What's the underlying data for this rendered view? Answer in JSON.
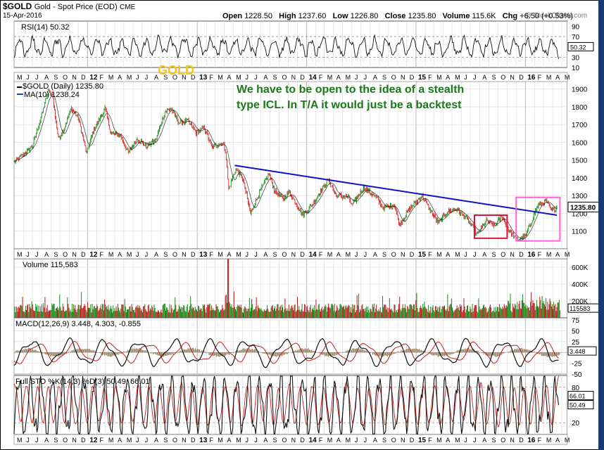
{
  "header": {
    "symbol": "$GOLD",
    "description": "Gold - Spot Price (EOD)",
    "exchange": "CME",
    "date": "15-Apr-2016",
    "watermark": "@ StockCharts.com",
    "ohlc": [
      {
        "label": "Open",
        "value": "1228.50"
      },
      {
        "label": "High",
        "value": "1237.60"
      },
      {
        "label": "Low",
        "value": "1226.80"
      },
      {
        "label": "Close",
        "value": "1235.80"
      },
      {
        "label": "Volume",
        "value": "115.6K"
      },
      {
        "label": "Chg",
        "value": "+6.50 (+0.53%)"
      }
    ]
  },
  "annotations": {
    "gold_label": "GOLD",
    "comment_line1": "We have to be open to the idea of a stealth",
    "comment_line2": "type ICL.  In T/A it would just be a backtest"
  },
  "colors": {
    "up": "#1a8a1a",
    "down": "#d42020",
    "trendline": "#1010c8",
    "ma": "#2040c0",
    "box_red": "#e01030",
    "box_pink": "#ff60e0",
    "volume": "#c01818",
    "grid": "#d8d8d8",
    "annotation": "#1a7a1a",
    "gold_label": "#f5c518"
  },
  "x_axis": {
    "labels": [
      "M",
      "J",
      "J",
      "A",
      "S",
      "O",
      "N",
      "D",
      "12",
      "F",
      "M",
      "A",
      "M",
      "J",
      "J",
      "A",
      "S",
      "O",
      "N",
      "D",
      "13",
      "F",
      "M",
      "A",
      "M",
      "J",
      "J",
      "A",
      "S",
      "O",
      "N",
      "D",
      "14",
      "F",
      "M",
      "A",
      "M",
      "J",
      "J",
      "A",
      "S",
      "O",
      "N",
      "D",
      "15",
      "F",
      "M",
      "A",
      "M",
      "J",
      "J",
      "A",
      "S",
      "O",
      "N",
      "D",
      "16",
      "F",
      "M",
      "A",
      "M"
    ],
    "year_labels": [
      "12",
      "13",
      "14",
      "15",
      "16"
    ]
  },
  "chart_data": [
    {
      "type": "line",
      "panel": "RSI",
      "title": "RSI(14) 50.32",
      "indicator": "RSI",
      "period": 14,
      "last_value": 50.32,
      "ylim": [
        10,
        100
      ],
      "y_ticks": [
        90,
        70,
        50,
        30,
        10
      ],
      "last_label": "50.32",
      "reference_lines": [
        70,
        30
      ]
    },
    {
      "type": "line",
      "panel": "Price",
      "title": "$GOLD (Daily) 1235.80",
      "legend": [
        {
          "name": "$GOLD (Daily) 1235.80"
        },
        {
          "name": "MA(10) 1238.24"
        }
      ],
      "ylim": [
        1000,
        1950
      ],
      "y_ticks": [
        1900,
        1800,
        1700,
        1600,
        1500,
        1400,
        1300,
        1200,
        1100
      ],
      "last_label": "1235.80",
      "series_points": [
        [
          "2011-05-01",
          1490
        ],
        [
          "2011-06-01",
          1530
        ],
        [
          "2011-07-01",
          1580
        ],
        [
          "2011-08-01",
          1750
        ],
        [
          "2011-08-22",
          1890
        ],
        [
          "2011-09-05",
          1870
        ],
        [
          "2011-09-26",
          1620
        ],
        [
          "2011-10-15",
          1680
        ],
        [
          "2011-11-08",
          1790
        ],
        [
          "2011-12-01",
          1740
        ],
        [
          "2011-12-29",
          1540
        ],
        [
          "2012-01-20",
          1660
        ],
        [
          "2012-02-28",
          1790
        ],
        [
          "2012-03-20",
          1650
        ],
        [
          "2012-04-20",
          1640
        ],
        [
          "2012-05-16",
          1540
        ],
        [
          "2012-06-15",
          1620
        ],
        [
          "2012-07-15",
          1580
        ],
        [
          "2012-08-15",
          1610
        ],
        [
          "2012-09-15",
          1770
        ],
        [
          "2012-10-05",
          1790
        ],
        [
          "2012-11-01",
          1710
        ],
        [
          "2012-12-01",
          1720
        ],
        [
          "2012-12-28",
          1655
        ],
        [
          "2013-01-25",
          1680
        ],
        [
          "2013-02-20",
          1570
        ],
        [
          "2013-03-25",
          1600
        ],
        [
          "2013-04-05",
          1560
        ],
        [
          "2013-04-16",
          1340
        ],
        [
          "2013-05-10",
          1450
        ],
        [
          "2013-06-01",
          1400
        ],
        [
          "2013-06-28",
          1200
        ],
        [
          "2013-07-20",
          1290
        ],
        [
          "2013-08-28",
          1420
        ],
        [
          "2013-09-15",
          1330
        ],
        [
          "2013-10-15",
          1280
        ],
        [
          "2013-11-05",
          1320
        ],
        [
          "2013-12-19",
          1190
        ],
        [
          "2014-01-20",
          1250
        ],
        [
          "2014-03-14",
          1390
        ],
        [
          "2014-04-10",
          1300
        ],
        [
          "2014-05-20",
          1290
        ],
        [
          "2014-06-01",
          1245
        ],
        [
          "2014-07-10",
          1345
        ],
        [
          "2014-08-15",
          1300
        ],
        [
          "2014-09-15",
          1230
        ],
        [
          "2014-10-20",
          1250
        ],
        [
          "2014-11-07",
          1135
        ],
        [
          "2014-12-10",
          1225
        ],
        [
          "2015-01-22",
          1300
        ],
        [
          "2015-02-15",
          1225
        ],
        [
          "2015-03-17",
          1145
        ],
        [
          "2015-04-15",
          1210
        ],
        [
          "2015-05-15",
          1225
        ],
        [
          "2015-06-15",
          1180
        ],
        [
          "2015-07-24",
          1080
        ],
        [
          "2015-08-24",
          1160
        ],
        [
          "2015-09-20",
          1130
        ],
        [
          "2015-10-15",
          1185
        ],
        [
          "2015-11-05",
          1110
        ],
        [
          "2015-12-03",
          1050
        ],
        [
          "2016-01-01",
          1070
        ],
        [
          "2016-02-11",
          1245
        ],
        [
          "2016-03-10",
          1270
        ],
        [
          "2016-03-28",
          1215
        ],
        [
          "2016-04-15",
          1235.8
        ]
      ],
      "trendline": [
        [
          "2013-05-06",
          1470
        ],
        [
          "2016-04-15",
          1190
        ]
      ],
      "boxes": [
        {
          "color": "red",
          "x": [
            "2015-07-15",
            "2015-11-01"
          ],
          "y": [
            1060,
            1190
          ]
        },
        {
          "color": "pink",
          "x": [
            "2015-12-01",
            "2016-04-25"
          ],
          "y": [
            1045,
            1290
          ]
        }
      ]
    },
    {
      "type": "bar",
      "panel": "Volume",
      "title": "Volume 115,583",
      "last_value": 115583,
      "ylim": [
        0,
        700000
      ],
      "y_ticks": [
        "600K",
        "400K",
        "200K"
      ],
      "last_label": "115583",
      "spike": {
        "date": "2013-04-15",
        "value": 730000
      }
    },
    {
      "type": "line",
      "panel": "MACD",
      "title": "MACD(12,26,9) 3.448, 4.303, -0.855",
      "values": {
        "macd": 3.448,
        "signal": 4.303,
        "histogram": -0.855
      },
      "ylim": [
        -50,
        80
      ],
      "y_ticks": [
        75,
        50,
        25,
        0,
        -25,
        -50
      ],
      "last_label": "3.448"
    },
    {
      "type": "line",
      "panel": "Full STO",
      "title": "Full STO %K(14,3) %D(3) 50.49, 66.01",
      "values": {
        "k": 50.49,
        "d": 66.01
      },
      "ylim": [
        0,
        100
      ],
      "y_ticks": [
        80,
        20
      ],
      "last_labels": [
        "66.01",
        "50.49"
      ],
      "reference_lines": [
        80,
        20
      ]
    }
  ]
}
